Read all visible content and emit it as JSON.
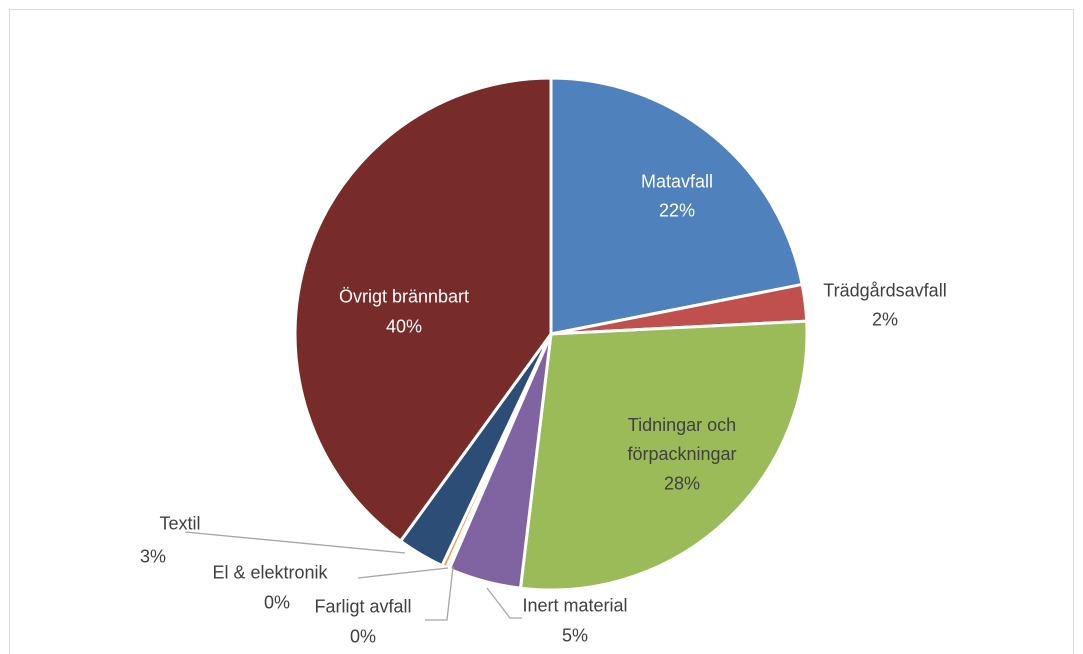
{
  "chart_data": {
    "type": "pie",
    "categories": [
      "Matavfall",
      "Trädgårdsavfall",
      "Tidningar och förpackningar",
      "Inert material",
      "Farligt avfall",
      "El & elektronik",
      "Textil",
      "Övrigt brännbart"
    ],
    "values": [
      21.9,
      2.3,
      27.7,
      4.6,
      0.2,
      0.3,
      3.0,
      40
    ],
    "value_labels": [
      "22%",
      "2%",
      "28%",
      "5%",
      "0%",
      "0%",
      "3%",
      "40%"
    ],
    "colors": [
      "#4f81bd",
      "#c0504d",
      "#9bbb59",
      "#8064a2",
      "#4bacc6",
      "#f79646",
      "#2c4d75",
      "#772c2a"
    ]
  }
}
